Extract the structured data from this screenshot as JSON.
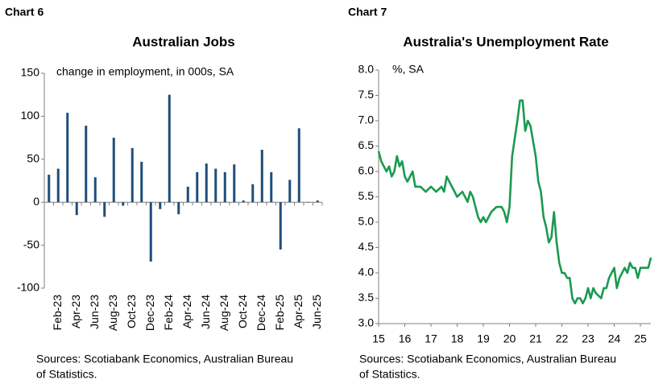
{
  "chart_data": [
    {
      "type": "bar",
      "panel_label": "Chart 6",
      "title": "Australian Jobs",
      "annotation": "change in employment, in 000s, SA",
      "source": [
        "Sources: Scotiabank Economics, Australian Bureau",
        "of Statistics."
      ],
      "categories": [
        null,
        "Feb-23",
        null,
        "Apr-23",
        null,
        "Jun-23",
        null,
        "Aug-23",
        null,
        "Oct-23",
        null,
        "Dec-23",
        null,
        "Feb-24",
        null,
        "Apr-24",
        null,
        "Jun-24",
        null,
        "Aug-24",
        null,
        "Oct-24",
        null,
        "Dec-24",
        null,
        "Feb-25",
        null,
        "Apr-25",
        null,
        "Jun-25"
      ],
      "values": [
        32,
        39,
        104,
        -15,
        89,
        29,
        -17,
        75,
        -4,
        63,
        47,
        -69,
        -8,
        125,
        -14,
        18,
        35,
        45,
        39,
        35,
        44,
        2,
        21,
        61,
        35,
        -55,
        26,
        86,
        0,
        2
      ],
      "color": "#1f4e79",
      "ylim": [
        -100,
        150
      ],
      "yticks": [
        -100,
        -50,
        0,
        50,
        100,
        150
      ],
      "grid": false
    },
    {
      "type": "line",
      "panel_label": "Chart 7",
      "title": "Australia's Unemployment Rate",
      "annotation": "%, SA",
      "source": [
        "Sources: Scotiabank Economics, Australian Bureau",
        "of Statistics."
      ],
      "x": [
        15.0,
        15.1,
        15.2,
        15.3,
        15.4,
        15.5,
        15.6,
        15.7,
        15.8,
        15.9,
        16.0,
        16.1,
        16.2,
        16.3,
        16.4,
        16.6,
        16.8,
        17.0,
        17.2,
        17.4,
        17.5,
        17.6,
        17.8,
        18.0,
        18.2,
        18.4,
        18.5,
        18.6,
        18.7,
        18.8,
        18.9,
        19.0,
        19.1,
        19.3,
        19.5,
        19.7,
        19.8,
        19.9,
        20.0,
        20.1,
        20.3,
        20.4,
        20.5,
        20.6,
        20.7,
        20.8,
        20.9,
        21.0,
        21.1,
        21.2,
        21.3,
        21.4,
        21.5,
        21.6,
        21.7,
        21.8,
        21.9,
        22.0,
        22.1,
        22.2,
        22.3,
        22.4,
        22.5,
        22.6,
        22.7,
        22.8,
        22.9,
        23.0,
        23.1,
        23.2,
        23.3,
        23.5,
        23.6,
        23.7,
        23.8,
        24.0,
        24.1,
        24.2,
        24.4,
        24.5,
        24.6,
        24.7,
        24.8,
        24.9,
        25.0,
        25.3,
        25.4
      ],
      "values": [
        6.4,
        6.2,
        6.1,
        6.0,
        6.1,
        5.9,
        6.0,
        6.3,
        6.1,
        6.2,
        5.9,
        5.8,
        5.9,
        6.0,
        5.7,
        5.7,
        5.6,
        5.7,
        5.6,
        5.7,
        5.6,
        5.9,
        5.7,
        5.5,
        5.6,
        5.4,
        5.6,
        5.5,
        5.3,
        5.1,
        5.0,
        5.1,
        5.0,
        5.2,
        5.3,
        5.3,
        5.2,
        5.0,
        5.3,
        6.3,
        7.0,
        7.4,
        7.4,
        6.8,
        7.0,
        6.9,
        6.6,
        6.3,
        5.8,
        5.6,
        5.1,
        4.9,
        4.6,
        4.7,
        5.2,
        4.6,
        4.2,
        4.0,
        4.0,
        3.9,
        3.9,
        3.5,
        3.4,
        3.5,
        3.5,
        3.4,
        3.5,
        3.7,
        3.5,
        3.7,
        3.6,
        3.5,
        3.7,
        3.7,
        3.9,
        4.1,
        3.7,
        3.9,
        4.1,
        4.0,
        4.2,
        4.1,
        4.1,
        3.9,
        4.1,
        4.1,
        4.3
      ],
      "color": "#1a9a50",
      "xlim": [
        15,
        25.4
      ],
      "xticks": [
        15,
        16,
        17,
        18,
        19,
        20,
        21,
        22,
        23,
        24,
        25
      ],
      "ylim": [
        3.0,
        8.0
      ],
      "yticks": [
        {
          "value": 3.0,
          "label": "3.0"
        },
        {
          "value": 3.5,
          "label": "3.5"
        },
        {
          "value": 4.0,
          "label": "4.0"
        },
        {
          "value": 4.5,
          "label": "4.5"
        },
        {
          "value": 5.0,
          "label": "5.0"
        },
        {
          "value": 5.5,
          "label": "5.5"
        },
        {
          "value": 6.0,
          "label": "6.0"
        },
        {
          "value": 6.5,
          "label": "6.5"
        },
        {
          "value": 7.0,
          "label": "7.0"
        },
        {
          "value": 7.5,
          "label": "7.5"
        },
        {
          "value": 8.0,
          "label": "8.0"
        }
      ],
      "grid": false
    }
  ]
}
